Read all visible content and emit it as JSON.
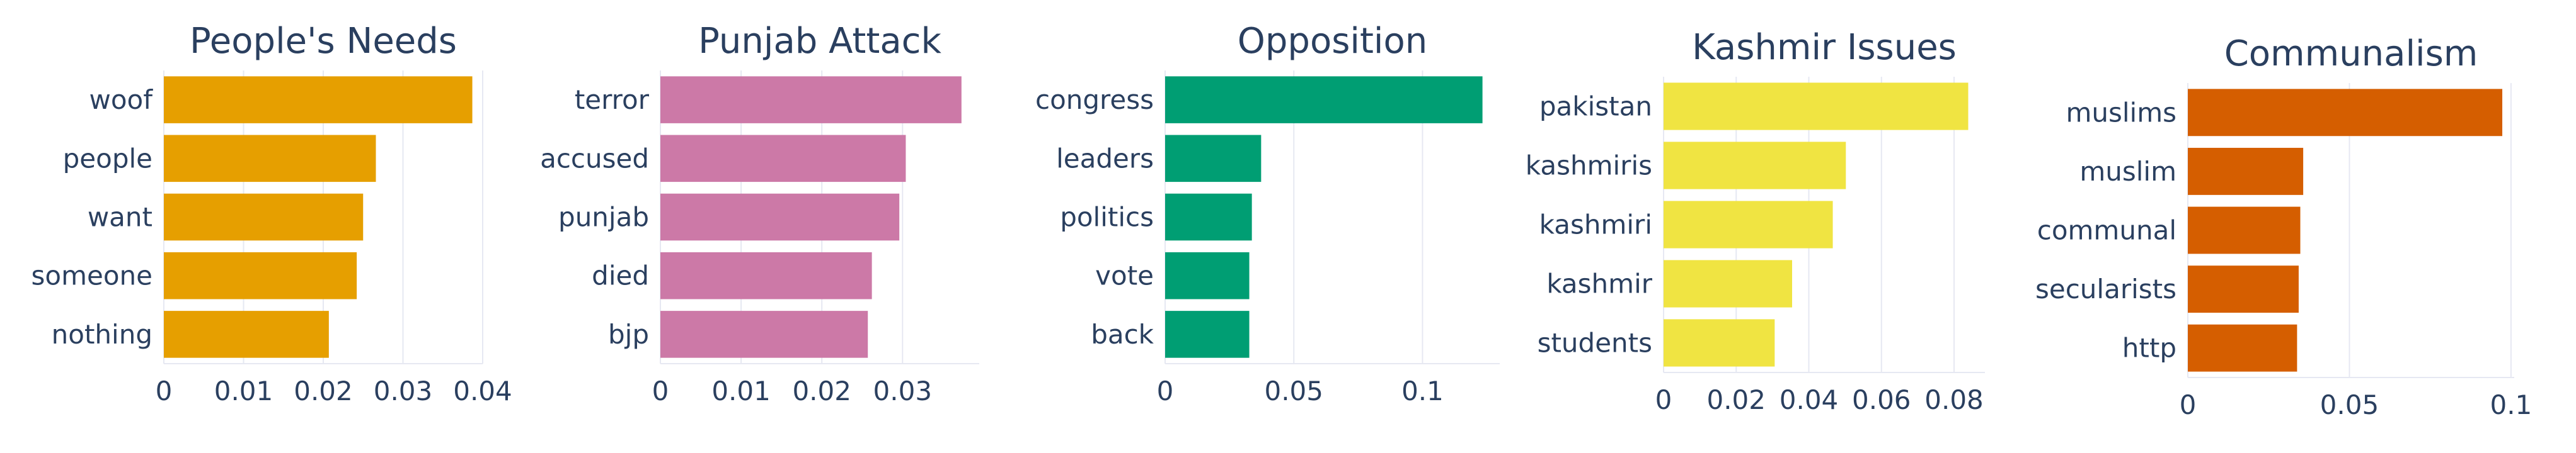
{
  "colors": {
    "grid": "#e6e8f2",
    "text": "#2a3f5f",
    "background": "#ffffff"
  },
  "chart_data": [
    {
      "type": "bar",
      "orientation": "horizontal",
      "title": "People's Needs",
      "categories": [
        "woof",
        "people",
        "want",
        "someone",
        "nothing"
      ],
      "values": [
        0.0387,
        0.0266,
        0.025,
        0.0242,
        0.0207
      ],
      "xlim": [
        0,
        0.04
      ],
      "x_ticks": [
        0,
        0.01,
        0.02,
        0.03,
        0.04
      ],
      "x_tick_labels": [
        "0",
        "0.01",
        "0.02",
        "0.03",
        "0.04"
      ],
      "color": "#e69f00",
      "grid": true
    },
    {
      "type": "bar",
      "orientation": "horizontal",
      "title": "Punjab Attack",
      "categories": [
        "terror",
        "accused",
        "punjab",
        "died",
        "bjp"
      ],
      "values": [
        0.0373,
        0.0304,
        0.0296,
        0.0262,
        0.0257
      ],
      "xlim": [
        0,
        0.0395
      ],
      "x_ticks": [
        0,
        0.01,
        0.02,
        0.03
      ],
      "x_tick_labels": [
        "0",
        "0.01",
        "0.02",
        "0.03"
      ],
      "color": "#cc79a7",
      "grid": true
    },
    {
      "type": "bar",
      "orientation": "horizontal",
      "title": "Opposition",
      "categories": [
        "congress",
        "leaders",
        "politics",
        "vote",
        "back"
      ],
      "values": [
        0.1233,
        0.0373,
        0.0337,
        0.0327,
        0.0327
      ],
      "xlim": [
        0,
        0.13
      ],
      "x_ticks": [
        0,
        0.05,
        0.1
      ],
      "x_tick_labels": [
        "0",
        "0.05",
        "0.1"
      ],
      "color": "#009e73",
      "grid": true
    },
    {
      "type": "bar",
      "orientation": "horizontal",
      "title": "Kashmir Issues",
      "categories": [
        "pakistan",
        "kashmiris",
        "kashmiri",
        "kashmir",
        "students"
      ],
      "values": [
        0.0839,
        0.0502,
        0.0466,
        0.0354,
        0.0306
      ],
      "xlim": [
        0,
        0.0885
      ],
      "x_ticks": [
        0,
        0.02,
        0.04,
        0.06,
        0.08
      ],
      "x_tick_labels": [
        "0",
        "0.02",
        "0.04",
        "0.06",
        "0.08"
      ],
      "color": "#f0e442",
      "grid": true
    },
    {
      "type": "bar",
      "orientation": "horizontal",
      "title": "Communalism",
      "categories": [
        "muslims",
        "muslim",
        "communal",
        "secularists",
        "http"
      ],
      "values": [
        0.0973,
        0.0357,
        0.0348,
        0.0343,
        0.0338
      ],
      "xlim": [
        0,
        0.101
      ],
      "x_ticks": [
        0,
        0.05,
        0.1
      ],
      "x_tick_labels": [
        "0",
        "0.05",
        "0.1"
      ],
      "color": "#d55e00",
      "grid": true
    }
  ]
}
